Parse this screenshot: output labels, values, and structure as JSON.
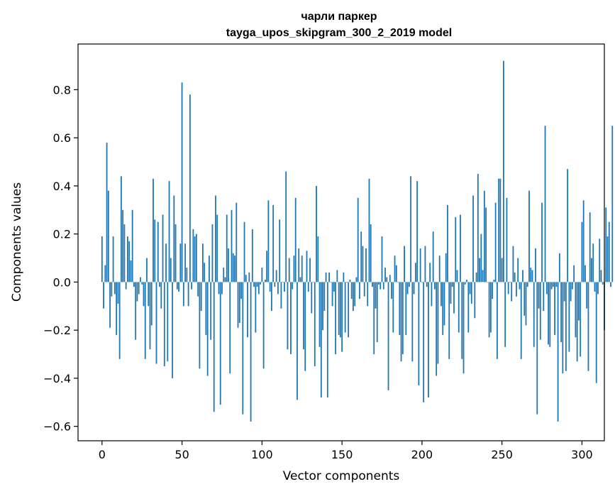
{
  "chart_data": {
    "type": "bar",
    "title": "чарли паркер",
    "subtitle": "tayga_upos_skipgram_300_2_2019 model",
    "xlabel": "Vector components",
    "ylabel": "Components values",
    "xlim": [
      -15,
      314
    ],
    "ylim": [
      -0.66,
      0.99
    ],
    "xticks": [
      0,
      50,
      100,
      150,
      200,
      250,
      300
    ],
    "xtick_labels": [
      "0",
      "50",
      "100",
      "150",
      "200",
      "250",
      "300"
    ],
    "yticks": [
      -0.6,
      -0.4,
      -0.2,
      0.0,
      0.2,
      0.4,
      0.6,
      0.8
    ],
    "ytick_labels": [
      "−0.6",
      "−0.4",
      "−0.2",
      "0.0",
      "0.2",
      "0.4",
      "0.6",
      "0.8"
    ],
    "bar_color": "#1f77b4",
    "values": [
      0.19,
      -0.11,
      0.07,
      0.58,
      0.38,
      -0.19,
      -0.06,
      0.19,
      -0.05,
      -0.22,
      -0.09,
      -0.32,
      0.44,
      0.3,
      0.24,
      -0.03,
      0.19,
      0.17,
      0.09,
      0.3,
      -0.02,
      -0.24,
      -0.08,
      -0.05,
      0.02,
      -0.01,
      -0.1,
      -0.32,
      0.1,
      -0.1,
      -0.28,
      -0.18,
      0.43,
      0.26,
      -0.34,
      0.25,
      -0.02,
      -0.11,
      0.28,
      -0.35,
      0.16,
      -0.33,
      0.42,
      0.1,
      -0.4,
      0.36,
      0.24,
      -0.03,
      -0.04,
      0.16,
      0.83,
      -0.1,
      0.16,
      0.06,
      -0.1,
      0.78,
      -0.03,
      0.22,
      0.19,
      0.2,
      -0.06,
      -0.36,
      -0.12,
      0.16,
      0.08,
      -0.22,
      -0.39,
      0.11,
      -0.24,
      0.24,
      -0.54,
      0.36,
      0.28,
      -0.05,
      -0.51,
      -0.05,
      0.06,
      0.02,
      0.28,
      0.14,
      -0.38,
      0.3,
      0.12,
      0.11,
      0.33,
      -0.19,
      -0.17,
      -0.07,
      -0.55,
      0.25,
      0.03,
      -0.23,
      0.04,
      -0.58,
      0.22,
      -0.02,
      -0.21,
      -0.02,
      -0.05,
      -0.01,
      0.06,
      -0.36,
      0.01,
      0.13,
      0.34,
      -0.04,
      -0.12,
      0.32,
      -0.02,
      0.05,
      -0.05,
      0.26,
      -0.11,
      0.0,
      -0.04,
      0.46,
      -0.28,
      0.1,
      -0.3,
      -0.03,
      0.11,
      0.35,
      -0.49,
      0.14,
      0.02,
      0.11,
      -0.28,
      -0.37,
      0.13,
      -0.04,
      0.1,
      -0.13,
      0.0,
      -0.35,
      0.4,
      0.19,
      -0.27,
      -0.48,
      -0.2,
      -0.12,
      0.04,
      -0.48,
      0.04,
      0.0,
      -0.1,
      -0.04,
      -0.3,
      0.05,
      -0.22,
      -0.23,
      -0.29,
      0.04,
      -0.21,
      0.0,
      -0.23,
      0.01,
      -0.07,
      -0.12,
      -0.1,
      0.02,
      0.35,
      -0.07,
      0.21,
      0.15,
      -0.06,
      0.14,
      -0.1,
      0.43,
      0.24,
      -0.02,
      -0.3,
      -0.11,
      -0.25,
      -0.01,
      -0.03,
      0.19,
      -0.03,
      0.06,
      0.02,
      -0.45,
      0.03,
      -0.07,
      -0.21,
      0.11,
      0.07,
      0.0,
      -0.22,
      -0.33,
      -0.3,
      0.15,
      -0.22,
      -0.05,
      -0.02,
      0.44,
      -0.33,
      -0.05,
      0.08,
      0.42,
      -0.43,
      0.14,
      0.0,
      -0.5,
      0.15,
      -0.02,
      -0.48,
      0.08,
      -0.1,
      0.21,
      -0.03,
      -0.39,
      -0.34,
      0.11,
      -0.1,
      -0.22,
      -0.18,
      0.12,
      0.32,
      -0.32,
      -0.09,
      -0.02,
      -0.13,
      0.27,
      0.05,
      -0.21,
      0.28,
      -0.32,
      -0.38,
      -0.01,
      0.01,
      -0.21,
      -0.05,
      -0.09,
      0.36,
      -0.15,
      0.04,
      0.45,
      0.1,
      0.2,
      0.05,
      0.38,
      0.31,
      0.0,
      -0.23,
      -0.21,
      -0.07,
      0.01,
      0.33,
      -0.32,
      0.43,
      0.43,
      0.1,
      0.92,
      -0.27,
      0.35,
      -0.05,
      0.0,
      -0.08,
      0.15,
      0.04,
      -0.06,
      0.1,
      -0.03,
      -0.32,
      0.05,
      -0.14,
      -0.18,
      -0.02,
      0.38,
      0.06,
      0.05,
      -0.27,
      0.14,
      -0.55,
      -0.11,
      -0.24,
      0.33,
      -0.12,
      0.65,
      -0.05,
      -0.26,
      -0.27,
      -0.03,
      -0.02,
      -0.22,
      -0.02,
      -0.58,
      0.12,
      -0.25,
      -0.38,
      -0.08,
      -0.37,
      0.47,
      -0.29,
      -0.08,
      -0.03,
      0.07,
      -0.23,
      -0.33,
      -0.16,
      -0.31,
      0.25,
      0.34,
      0.07,
      -0.11,
      -0.37,
      0.29,
      0.1,
      0.16,
      -0.04,
      -0.42,
      -0.05,
      0.18,
      0.05,
      -0.01,
      -0.2,
      0.31,
      0.19,
      0.25,
      -0.02,
      0.65
    ]
  }
}
